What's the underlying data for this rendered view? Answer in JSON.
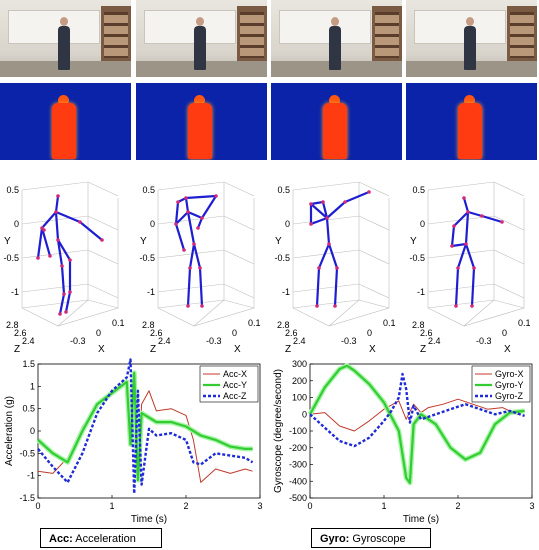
{
  "skeleton_axes": {
    "y_label": "Y",
    "x_label": "X",
    "z_label": "Z",
    "y_ticks": [
      "0.5",
      "0",
      "-0.5",
      "-1"
    ],
    "z_ticks": [
      "2.8",
      "2.6",
      "2.4"
    ],
    "x_ticks": [
      "-0.3",
      "0",
      "0.1"
    ]
  },
  "acc_plot": {
    "xlabel": "Time (s)",
    "ylabel": "Acceleration (g)",
    "xticks": [
      "0",
      "1",
      "2",
      "3"
    ],
    "yticks": [
      "1.5",
      "1",
      "0.5",
      "0",
      "-0.5",
      "-1",
      "-1.5"
    ],
    "legend": [
      "Acc-X",
      "Acc-Y",
      "Acc-Z"
    ],
    "colors": [
      "#c0392b",
      "#33cc33",
      "#1f2bd6"
    ]
  },
  "gyro_plot": {
    "xlabel": "Time (s)",
    "ylabel": "Gyroscope (degree/second)",
    "xticks": [
      "0",
      "1",
      "2",
      "3"
    ],
    "yticks": [
      "300",
      "200",
      "100",
      "0",
      "-100",
      "-200",
      "-300",
      "-400",
      "-500"
    ],
    "legend": [
      "Gyro-X",
      "Gyro-Y",
      "Gyro-Z"
    ],
    "colors": [
      "#c0392b",
      "#33cc33",
      "#1f2bd6"
    ]
  },
  "captions": {
    "acc_abbr": "Acc:",
    "acc_text": " Acceleration",
    "gyro_abbr": "Gyro:",
    "gyro_text": " Gyroscope"
  },
  "chart_data": [
    {
      "type": "line",
      "xlabel": "Time (s)",
      "ylabel": "Acceleration (g)",
      "xlim": [
        0,
        3
      ],
      "ylim": [
        -1.5,
        1.5
      ],
      "legend_position": "top-right",
      "series": [
        {
          "name": "Acc-X",
          "x": [
            0,
            0.2,
            0.4,
            0.6,
            0.8,
            1.0,
            1.2,
            1.25,
            1.3,
            1.35,
            1.4,
            1.5,
            1.6,
            1.8,
            2.0,
            2.1,
            2.2,
            2.4,
            2.6,
            2.8,
            2.9
          ],
          "y": [
            -0.9,
            -0.95,
            -0.6,
            0.1,
            0.6,
            0.9,
            1.1,
            -0.2,
            1.2,
            -1.0,
            0.6,
            0.9,
            0.45,
            0.5,
            0.35,
            -0.2,
            -1.15,
            -0.85,
            -0.95,
            -0.85,
            -0.9
          ]
        },
        {
          "name": "Acc-Y",
          "x": [
            0,
            0.2,
            0.4,
            0.6,
            0.8,
            1.0,
            1.2,
            1.25,
            1.3,
            1.35,
            1.4,
            1.5,
            1.6,
            1.8,
            2.0,
            2.2,
            2.4,
            2.6,
            2.8,
            2.9
          ],
          "y": [
            -0.2,
            -0.5,
            -0.7,
            0.0,
            0.6,
            0.85,
            1.1,
            -0.3,
            1.3,
            -1.1,
            0.4,
            0.3,
            0.2,
            0.2,
            0.1,
            -0.1,
            -0.2,
            -0.35,
            -0.4,
            -0.4
          ]
        },
        {
          "name": "Acc-Z",
          "x": [
            0,
            0.2,
            0.4,
            0.6,
            0.8,
            1.0,
            1.2,
            1.25,
            1.3,
            1.35,
            1.4,
            1.5,
            1.6,
            1.8,
            2.0,
            2.1,
            2.2,
            2.4,
            2.6,
            2.8,
            2.9
          ],
          "y": [
            -0.4,
            -0.8,
            -1.15,
            -0.5,
            0.4,
            0.9,
            1.2,
            1.6,
            -1.4,
            0.9,
            -1.2,
            0.05,
            -0.1,
            -0.05,
            -0.2,
            -0.7,
            -0.75,
            -0.5,
            -0.55,
            -0.6,
            -0.7
          ]
        }
      ]
    },
    {
      "type": "line",
      "xlabel": "Time (s)",
      "ylabel": "Gyroscope (degree/second)",
      "xlim": [
        0,
        3
      ],
      "ylim": [
        -500,
        300
      ],
      "legend_position": "top-right",
      "series": [
        {
          "name": "Gyro-X",
          "x": [
            0,
            0.2,
            0.4,
            0.6,
            0.8,
            1.0,
            1.2,
            1.3,
            1.4,
            1.5,
            1.6,
            1.8,
            2.0,
            2.2,
            2.4,
            2.6,
            2.8,
            2.9
          ],
          "y": [
            0,
            10,
            -70,
            -100,
            -40,
            30,
            80,
            -30,
            60,
            10,
            40,
            60,
            90,
            60,
            30,
            40,
            0,
            20
          ]
        },
        {
          "name": "Gyro-Y",
          "x": [
            0,
            0.2,
            0.4,
            0.5,
            0.6,
            0.8,
            1.0,
            1.2,
            1.3,
            1.35,
            1.4,
            1.5,
            1.7,
            1.9,
            2.1,
            2.3,
            2.5,
            2.7,
            2.9
          ],
          "y": [
            0,
            160,
            270,
            290,
            260,
            180,
            70,
            -100,
            -380,
            -410,
            -60,
            0,
            -60,
            -200,
            -270,
            -230,
            -60,
            10,
            20
          ]
        },
        {
          "name": "Gyro-Z",
          "x": [
            0,
            0.2,
            0.4,
            0.6,
            0.8,
            1.0,
            1.1,
            1.2,
            1.25,
            1.3,
            1.35,
            1.4,
            1.5,
            1.7,
            1.9,
            2.1,
            2.3,
            2.5,
            2.7,
            2.9
          ],
          "y": [
            0,
            -80,
            -160,
            -190,
            -140,
            -40,
            20,
            100,
            240,
            150,
            -50,
            50,
            -30,
            0,
            30,
            60,
            30,
            0,
            20,
            -10
          ]
        }
      ]
    }
  ]
}
